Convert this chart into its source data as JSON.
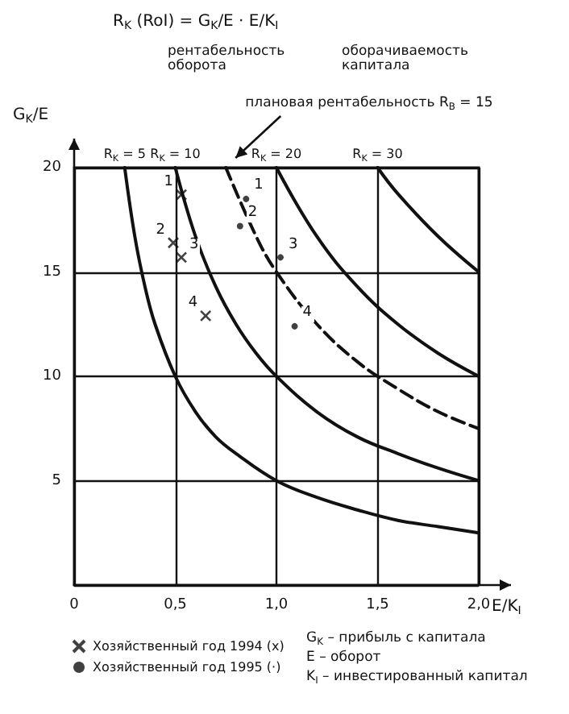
{
  "chart_data": {
    "type": "line",
    "title": "R$_{K}$ (RoI) = G$_{K}$/E · E/K$_{I}$",
    "xlabel": "E/K$_{I}$",
    "ylabel": "G$_{K}$/E",
    "xlim": [
      0,
      2.0
    ],
    "ylim": [
      0,
      20
    ],
    "xticks": [
      {
        "value": 0,
        "label": "0"
      },
      {
        "value": 0.5,
        "label": "0,5"
      },
      {
        "value": 1.0,
        "label": "1,0"
      },
      {
        "value": 1.5,
        "label": "1,5"
      },
      {
        "value": 2.0,
        "label": "2,0"
      }
    ],
    "yticks": [
      {
        "value": 0,
        "label": null
      },
      5,
      10,
      15,
      20
    ],
    "grid": true,
    "legend": "bottom left",
    "series": [
      {
        "name": "R$_{K}$ = 5",
        "color": "#111111",
        "line_style": "solid",
        "marker": "none",
        "x": [
          0.25,
          0.3,
          0.35,
          0.4,
          0.5,
          0.6,
          0.7,
          0.8,
          1.0,
          1.2,
          1.4,
          1.6,
          1.8,
          2.0
        ],
        "values": [
          20,
          16.7,
          14.3,
          12.5,
          10,
          8.3,
          7.1,
          6.3,
          5,
          4.2,
          3.6,
          3.1,
          2.8,
          2.5
        ]
      },
      {
        "name": "R$_{K}$ = 10",
        "color": "#111111",
        "line_style": "solid",
        "marker": "none",
        "x": [
          0.5,
          0.6,
          0.7,
          0.8,
          0.9,
          1.0,
          1.2,
          1.4,
          1.6,
          1.8,
          2.0
        ],
        "values": [
          20,
          16.7,
          14.3,
          12.5,
          11.1,
          10,
          8.3,
          7.1,
          6.3,
          5.6,
          5
        ]
      },
      {
        "color": "#111111",
        "line_style": "dashed",
        "marker": "none",
        "x": [
          0.75,
          0.9,
          1.0,
          1.2,
          1.4,
          1.6,
          1.8,
          2.0
        ],
        "values": [
          20,
          16.7,
          15,
          12.5,
          10.7,
          9.4,
          8.3,
          7.5
        ]
      },
      {
        "name": "R$_{K}$ = 20",
        "color": "#111111",
        "line_style": "solid",
        "marker": "none",
        "x": [
          1.0,
          1.2,
          1.4,
          1.6,
          1.8,
          2.0
        ],
        "values": [
          20,
          16.7,
          14.3,
          12.5,
          11.1,
          10
        ]
      },
      {
        "name": "R$_{K}$ = 30",
        "color": "#111111",
        "line_style": "solid",
        "marker": "none",
        "x": [
          1.5,
          1.6,
          1.8,
          2.0
        ],
        "values": [
          20,
          18.75,
          16.7,
          15
        ]
      },
      {
        "name": "Хозяйственный год 1994 (x)",
        "type": "scatter",
        "color": "#111111",
        "marker": "cross",
        "x": [
          0.53,
          0.49,
          0.53,
          0.65
        ],
        "values": [
          18.7,
          16.4,
          15.7,
          12.9
        ]
      },
      {
        "name": "Хозяйственный год 1995 (·)",
        "type": "scatter",
        "color": "#111111",
        "marker": "circle",
        "x": [
          0.85,
          0.82,
          1.02,
          1.09
        ],
        "values": [
          18.5,
          17.2,
          15.7,
          12.4
        ]
      }
    ],
    "annotations": [
      "рентабельность оборота",
      "оборачиваемость капитала",
      {
        "text": "плановая рентабельность R$_{B}$ = 15",
        "x": 0.75,
        "y": 20
      },
      "G$_{K}$ – прибыль с капитала",
      "E – оборот",
      "K$_{I}$ – инвестированный капитал",
      {
        "text": "1",
        "x": 0.53,
        "y": 18.7
      },
      {
        "text": "2",
        "x": 0.49,
        "y": 16.4
      },
      {
        "text": "3",
        "x": 0.53,
        "y": 15.7
      },
      {
        "text": "4",
        "x": 0.65,
        "y": 12.9
      },
      {
        "text": "1",
        "x": 0.85,
        "y": 18.5
      },
      {
        "text": "2",
        "x": 0.82,
        "y": 17.2
      },
      {
        "text": "3",
        "x": 1.02,
        "y": 15.7
      },
      {
        "text": "4",
        "x": 1.09,
        "y": 12.4
      }
    ]
  }
}
